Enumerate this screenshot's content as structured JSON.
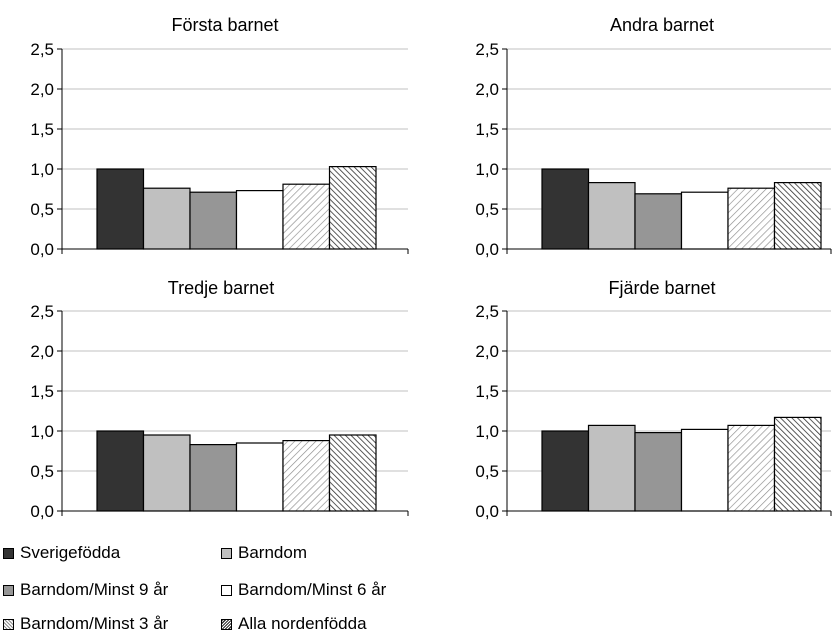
{
  "chart_data": [
    {
      "type": "bar",
      "title": "Första barnet",
      "categories": [
        "Sverigefödda",
        "Barndom",
        "Barndom/Minst 9 år",
        "Barndom/Minst 6 år",
        "Barndom/Minst 3 år",
        "Alla nordenfödda"
      ],
      "values": [
        1.0,
        0.76,
        0.71,
        0.73,
        0.81,
        1.03
      ],
      "ylim": [
        0,
        2.5
      ],
      "yticks": [
        "0,0",
        "0,5",
        "1,0",
        "1,5",
        "2,0",
        "2,5"
      ],
      "grid": true
    },
    {
      "type": "bar",
      "title": "Andra barnet",
      "categories": [
        "Sverigefödda",
        "Barndom",
        "Barndom/Minst 9 år",
        "Barndom/Minst 6 år",
        "Barndom/Minst 3 år",
        "Alla nordenfödda"
      ],
      "values": [
        1.0,
        0.83,
        0.69,
        0.71,
        0.76,
        0.83
      ],
      "ylim": [
        0,
        2.5
      ],
      "yticks": [
        "0,0",
        "0,5",
        "1,0",
        "1,5",
        "2,0",
        "2,5"
      ],
      "grid": true
    },
    {
      "type": "bar",
      "title": "Tredje barnet",
      "categories": [
        "Sverigefödda",
        "Barndom",
        "Barndom/Minst 9 år",
        "Barndom/Minst 6 år",
        "Barndom/Minst 3 år",
        "Alla nordenfödda"
      ],
      "values": [
        1.0,
        0.95,
        0.83,
        0.85,
        0.88,
        0.95
      ],
      "ylim": [
        0,
        2.5
      ],
      "yticks": [
        "0,0",
        "0,5",
        "1,0",
        "1,5",
        "2,0",
        "2,5"
      ],
      "grid": true
    },
    {
      "type": "bar",
      "title": "Fjärde barnet",
      "categories": [
        "Sverigefödda",
        "Barndom",
        "Barndom/Minst 9 år",
        "Barndom/Minst 6 år",
        "Barndom/Minst 3 år",
        "Alla nordenfödda"
      ],
      "values": [
        1.0,
        1.07,
        0.98,
        1.02,
        1.07,
        1.17
      ],
      "ylim": [
        0,
        2.5
      ],
      "yticks": [
        "0,0",
        "0,5",
        "1,0",
        "1,5",
        "2,0",
        "2,5"
      ],
      "grid": true
    }
  ],
  "legend": {
    "placement": "bottom-left",
    "items": [
      {
        "label": "Sverigefödda",
        "color": "#333333",
        "pattern": "solid"
      },
      {
        "label": "Barndom",
        "color": "#c0c0c0",
        "pattern": "solid"
      },
      {
        "label": "Barndom/Minst 9 år",
        "color": "#969696",
        "pattern": "solid"
      },
      {
        "label": "Barndom/Minst 6 år",
        "color": "#ffffff",
        "pattern": "solid"
      },
      {
        "label": "Barndom/Minst 3 år",
        "color": "#ffffff",
        "pattern": "light-diagonal-stripes"
      },
      {
        "label": "Alla nordenfödda",
        "color": "#ffffff",
        "pattern": "dark-diagonal-stripes"
      }
    ]
  }
}
